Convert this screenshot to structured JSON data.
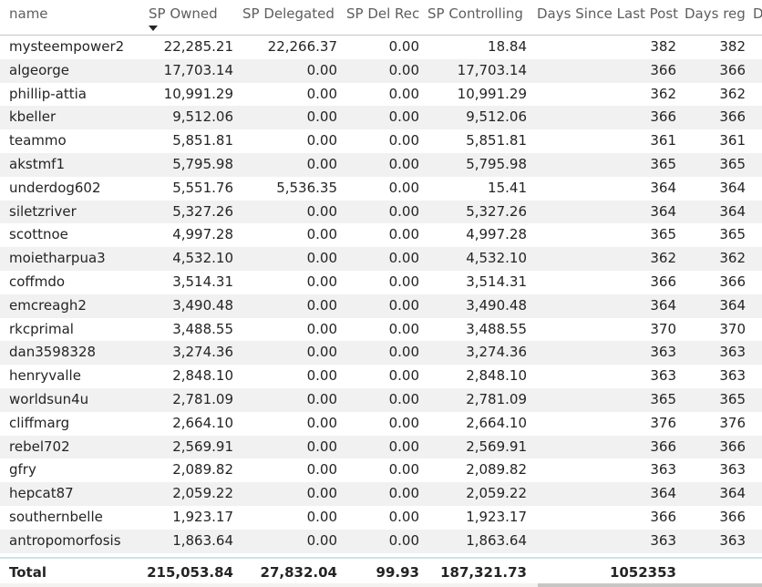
{
  "table": {
    "columns": [
      "name",
      "SP Owned",
      "SP Delegated",
      "SP Del Rec",
      "SP Controlling",
      "Days Since Last Post",
      "Days reg",
      "D"
    ],
    "sorted_column": "SP Owned",
    "sort_direction": "descending",
    "rows": [
      [
        "mysteempower2",
        "22,285.21",
        "22,266.37",
        "0.00",
        "18.84",
        "382",
        "382"
      ],
      [
        "algeorge",
        "17,703.14",
        "0.00",
        "0.00",
        "17,703.14",
        "366",
        "366"
      ],
      [
        "phillip-attia",
        "10,991.29",
        "0.00",
        "0.00",
        "10,991.29",
        "362",
        "362"
      ],
      [
        "kbeller",
        "9,512.06",
        "0.00",
        "0.00",
        "9,512.06",
        "366",
        "366"
      ],
      [
        "teammo",
        "5,851.81",
        "0.00",
        "0.00",
        "5,851.81",
        "361",
        "361"
      ],
      [
        "akstmf1",
        "5,795.98",
        "0.00",
        "0.00",
        "5,795.98",
        "365",
        "365"
      ],
      [
        "underdog602",
        "5,551.76",
        "5,536.35",
        "0.00",
        "15.41",
        "364",
        "364"
      ],
      [
        "siletzriver",
        "5,327.26",
        "0.00",
        "0.00",
        "5,327.26",
        "364",
        "364"
      ],
      [
        "scottnoe",
        "4,997.28",
        "0.00",
        "0.00",
        "4,997.28",
        "365",
        "365"
      ],
      [
        "moietharpua3",
        "4,532.10",
        "0.00",
        "0.00",
        "4,532.10",
        "362",
        "362"
      ],
      [
        "coffmdo",
        "3,514.31",
        "0.00",
        "0.00",
        "3,514.31",
        "366",
        "366"
      ],
      [
        "emcreagh2",
        "3,490.48",
        "0.00",
        "0.00",
        "3,490.48",
        "364",
        "364"
      ],
      [
        "rkcprimal",
        "3,488.55",
        "0.00",
        "0.00",
        "3,488.55",
        "370",
        "370"
      ],
      [
        "dan3598328",
        "3,274.36",
        "0.00",
        "0.00",
        "3,274.36",
        "363",
        "363"
      ],
      [
        "henryvalle",
        "2,848.10",
        "0.00",
        "0.00",
        "2,848.10",
        "363",
        "363"
      ],
      [
        "worldsun4u",
        "2,781.09",
        "0.00",
        "0.00",
        "2,781.09",
        "365",
        "365"
      ],
      [
        "cliffmarg",
        "2,664.10",
        "0.00",
        "0.00",
        "2,664.10",
        "376",
        "376"
      ],
      [
        "rebel702",
        "2,569.91",
        "0.00",
        "0.00",
        "2,569.91",
        "366",
        "366"
      ],
      [
        "gfry",
        "2,089.82",
        "0.00",
        "0.00",
        "2,089.82",
        "363",
        "363"
      ],
      [
        "hepcat87",
        "2,059.22",
        "0.00",
        "0.00",
        "2,059.22",
        "364",
        "364"
      ],
      [
        "southernbelle",
        "1,923.17",
        "0.00",
        "0.00",
        "1,923.17",
        "366",
        "366"
      ],
      [
        "antropomorfosis",
        "1,863.64",
        "0.00",
        "0.00",
        "1,863.64",
        "363",
        "363"
      ]
    ],
    "total": {
      "label": "Total",
      "sp_owned": "215,053.84",
      "sp_delegated": "27,832.04",
      "sp_del_rec": "99.93",
      "sp_controlling": "187,321.73",
      "days_since_last_post": "1052353",
      "days_reg": ""
    }
  }
}
